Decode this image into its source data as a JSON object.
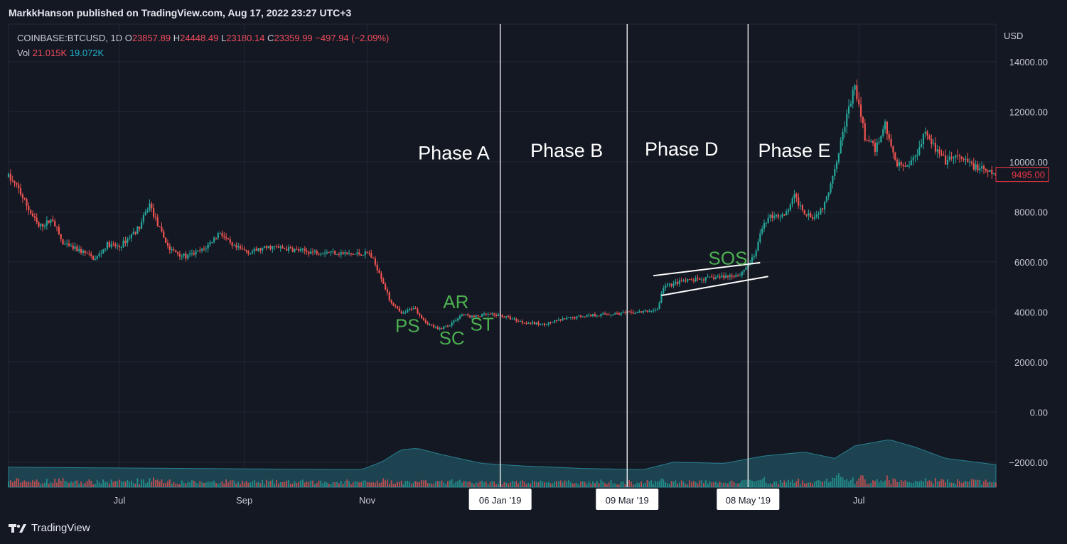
{
  "header": {
    "publisher_line": "MarkkHanson published on TradingView.com, Aug 17, 2022 23:27 UTC+3"
  },
  "legend": {
    "symbol": "COINBASE:BTCUSD, 1D",
    "o_label": "O",
    "o_value": "23857.89",
    "h_label": "H",
    "h_value": "24448.49",
    "l_label": "L",
    "l_value": "23180.14",
    "c_label": "C",
    "c_value": "23359.99",
    "change": "−497.94 (−2.09%)",
    "vol_label": "Vol",
    "vol_value1": "21.015K",
    "vol_value2": "19.072K"
  },
  "footer": {
    "brand": "TradingView"
  },
  "colors": {
    "background": "#141823",
    "up": "#26a69a",
    "down": "#ef5350",
    "annotation_green": "#4caf50",
    "grid": "#232734",
    "price_tag": "#f23645"
  },
  "chart_data": {
    "type": "candlestick",
    "symbol": "COINBASE:BTCUSD",
    "interval": "1D",
    "currency_label": "USD",
    "y_ticks": [
      "14000.00",
      "12000.00",
      "10000.00",
      "8000.00",
      "6000.00",
      "4000.00",
      "2000.00",
      "0.00",
      "−2000.00"
    ],
    "ylim": [
      -3000,
      15500
    ],
    "last_price": "9495.00",
    "x_ticks": [
      {
        "label": "Jul",
        "x": 0
      },
      {
        "label": "Sep",
        "x": 62
      },
      {
        "label": "Nov",
        "x": 123
      },
      {
        "label": "Jul",
        "x": 367
      }
    ],
    "x_range": [
      -55,
      435
    ],
    "date_markers": [
      {
        "label": "06 Jan '19",
        "x": 189
      },
      {
        "label": "09 Mar '19",
        "x": 252
      },
      {
        "label": "08 May '19",
        "x": 312
      }
    ],
    "phases": [
      {
        "label": "Phase A",
        "x": 166,
        "y": 10100
      },
      {
        "label": "Phase B",
        "x": 222,
        "y": 10200
      },
      {
        "label": "Phase D",
        "x": 279,
        "y": 10250
      },
      {
        "label": "Phase E",
        "x": 335,
        "y": 10200
      }
    ],
    "annotations": [
      {
        "label": "PS",
        "x": 143,
        "y": 3200
      },
      {
        "label": "SC",
        "x": 165,
        "y": 2700
      },
      {
        "label": "ST",
        "x": 180,
        "y": 3250
      },
      {
        "label": "AR",
        "x": 167,
        "y": 4150
      },
      {
        "label": "SOS",
        "x": 302,
        "y": 5900
      }
    ],
    "trendlines": [
      {
        "x1": 265,
        "y1": 5450,
        "x2": 318,
        "y2": 5970
      },
      {
        "x1": 269,
        "y1": 4660,
        "x2": 322,
        "y2": 5420
      }
    ],
    "price_path": [
      {
        "x": -55,
        "y": 9400
      },
      {
        "x": -50,
        "y": 8900
      },
      {
        "x": -45,
        "y": 8100
      },
      {
        "x": -40,
        "y": 7400
      },
      {
        "x": -33,
        "y": 7700
      },
      {
        "x": -28,
        "y": 6700
      },
      {
        "x": -18,
        "y": 6400
      },
      {
        "x": -12,
        "y": 6100
      },
      {
        "x": -6,
        "y": 6700
      },
      {
        "x": 0,
        "y": 6600
      },
      {
        "x": 5,
        "y": 7000
      },
      {
        "x": 10,
        "y": 7400
      },
      {
        "x": 15,
        "y": 8300
      },
      {
        "x": 20,
        "y": 7300
      },
      {
        "x": 25,
        "y": 6500
      },
      {
        "x": 33,
        "y": 6200
      },
      {
        "x": 42,
        "y": 6500
      },
      {
        "x": 50,
        "y": 7200
      },
      {
        "x": 56,
        "y": 6600
      },
      {
        "x": 65,
        "y": 6400
      },
      {
        "x": 75,
        "y": 6600
      },
      {
        "x": 85,
        "y": 6500
      },
      {
        "x": 95,
        "y": 6400
      },
      {
        "x": 105,
        "y": 6400
      },
      {
        "x": 115,
        "y": 6300
      },
      {
        "x": 124,
        "y": 6350
      },
      {
        "x": 129,
        "y": 5600
      },
      {
        "x": 134,
        "y": 4500
      },
      {
        "x": 140,
        "y": 3900
      },
      {
        "x": 146,
        "y": 4200
      },
      {
        "x": 152,
        "y": 3600
      },
      {
        "x": 158,
        "y": 3300
      },
      {
        "x": 164,
        "y": 3500
      },
      {
        "x": 170,
        "y": 3900
      },
      {
        "x": 176,
        "y": 3800
      },
      {
        "x": 182,
        "y": 3900
      },
      {
        "x": 190,
        "y": 3850
      },
      {
        "x": 200,
        "y": 3600
      },
      {
        "x": 210,
        "y": 3500
      },
      {
        "x": 220,
        "y": 3700
      },
      {
        "x": 230,
        "y": 3850
      },
      {
        "x": 240,
        "y": 3900
      },
      {
        "x": 250,
        "y": 3950
      },
      {
        "x": 260,
        "y": 4000
      },
      {
        "x": 267,
        "y": 4100
      },
      {
        "x": 270,
        "y": 5000
      },
      {
        "x": 278,
        "y": 5200
      },
      {
        "x": 288,
        "y": 5300
      },
      {
        "x": 298,
        "y": 5400
      },
      {
        "x": 308,
        "y": 5500
      },
      {
        "x": 315,
        "y": 6200
      },
      {
        "x": 320,
        "y": 7600
      },
      {
        "x": 325,
        "y": 7900
      },
      {
        "x": 330,
        "y": 7800
      },
      {
        "x": 335,
        "y": 8600
      },
      {
        "x": 340,
        "y": 8000
      },
      {
        "x": 345,
        "y": 7800
      },
      {
        "x": 350,
        "y": 8300
      },
      {
        "x": 355,
        "y": 9800
      },
      {
        "x": 360,
        "y": 11500
      },
      {
        "x": 365,
        "y": 13000
      },
      {
        "x": 370,
        "y": 11000
      },
      {
        "x": 375,
        "y": 10500
      },
      {
        "x": 380,
        "y": 11500
      },
      {
        "x": 385,
        "y": 10000
      },
      {
        "x": 390,
        "y": 9800
      },
      {
        "x": 395,
        "y": 10200
      },
      {
        "x": 400,
        "y": 11300
      },
      {
        "x": 405,
        "y": 10500
      },
      {
        "x": 410,
        "y": 10000
      },
      {
        "x": 415,
        "y": 10200
      },
      {
        "x": 420,
        "y": 10000
      },
      {
        "x": 425,
        "y": 9800
      },
      {
        "x": 430,
        "y": 9600
      },
      {
        "x": 435,
        "y": 9495
      }
    ],
    "volume_path": [
      {
        "x": -55,
        "y": -2200
      },
      {
        "x": 120,
        "y": -2300
      },
      {
        "x": 130,
        "y": -2000
      },
      {
        "x": 140,
        "y": -1500
      },
      {
        "x": 148,
        "y": -1450
      },
      {
        "x": 160,
        "y": -1700
      },
      {
        "x": 180,
        "y": -2050
      },
      {
        "x": 200,
        "y": -2150
      },
      {
        "x": 230,
        "y": -2250
      },
      {
        "x": 260,
        "y": -2300
      },
      {
        "x": 275,
        "y": -2000
      },
      {
        "x": 300,
        "y": -2050
      },
      {
        "x": 320,
        "y": -1750
      },
      {
        "x": 340,
        "y": -1600
      },
      {
        "x": 355,
        "y": -1850
      },
      {
        "x": 365,
        "y": -1350
      },
      {
        "x": 382,
        "y": -1100
      },
      {
        "x": 395,
        "y": -1400
      },
      {
        "x": 410,
        "y": -1850
      },
      {
        "x": 435,
        "y": -2100
      }
    ]
  }
}
